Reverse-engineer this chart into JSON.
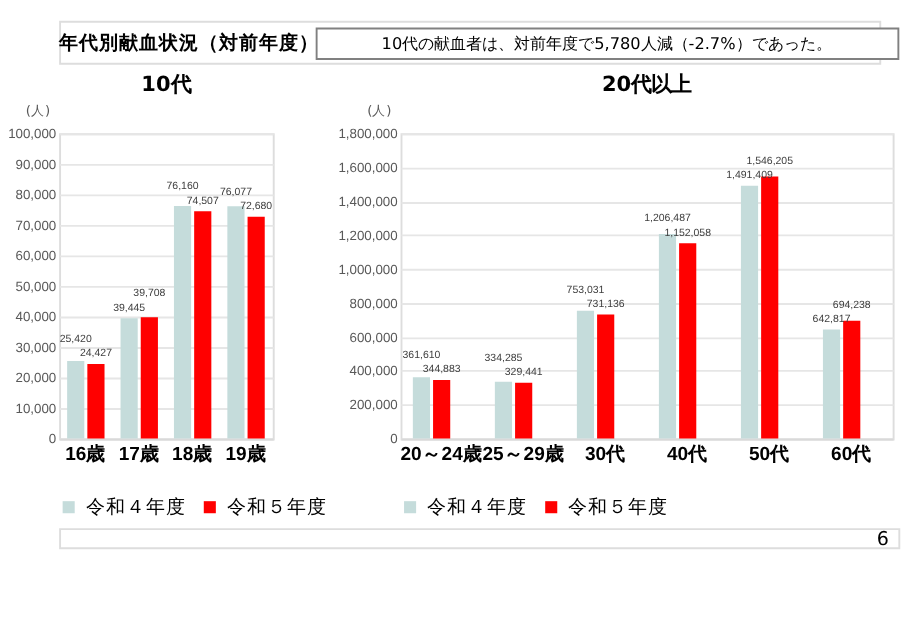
{
  "chart_data": [
    {
      "type": "bar",
      "title": "10代",
      "ylabel": "(人)",
      "categories": [
        "16歳",
        "17歳",
        "18歳",
        "19歳"
      ],
      "series": [
        {
          "name": "令和４年度",
          "color": "#c5dcdb",
          "values": [
            25420,
            39445,
            76160,
            76077
          ],
          "value_labels": [
            "25,420",
            "39,445",
            "76,160",
            "76,077"
          ]
        },
        {
          "name": "令和５年度",
          "color": "#ff0000",
          "values": [
            24427,
            39708,
            74507,
            72680
          ],
          "value_labels": [
            "24,427",
            "39,708",
            "74,507",
            "72,680"
          ]
        }
      ],
      "ylim": [
        0,
        100000
      ],
      "yticks": [
        0,
        {
          "value": 10000,
          "label": "10,000"
        },
        {
          "value": 20000,
          "label": "20,000"
        },
        {
          "value": 30000,
          "label": "30,000"
        },
        {
          "value": 40000,
          "label": "40,000"
        },
        {
          "value": 50000,
          "label": "50,000"
        },
        {
          "value": 60000,
          "label": "60,000"
        },
        {
          "value": 70000,
          "label": "70,000"
        },
        {
          "value": 80000,
          "label": "80,000"
        },
        {
          "value": 90000,
          "label": "90,000"
        },
        {
          "value": 100000,
          "label": "100,000"
        }
      ],
      "grid": "y",
      "legend": "bottom",
      "data_labels": true,
      "annotations": [
        "年代別献血状況（対前年度）",
        "10代の献血者は、対前年度で5,780人減（-2.7%）であった。"
      ]
    },
    {
      "type": "bar",
      "title": "20代以上",
      "ylabel": "(人)",
      "categories": [
        "20～24歳",
        "25～29歳",
        "30代",
        "40代",
        "50代",
        "60代"
      ],
      "series": [
        {
          "name": "令和４年度",
          "color": "#c5dcdb",
          "values": [
            361610,
            334285,
            753031,
            1206487,
            1491409,
            642817
          ],
          "value_labels": [
            "361,610",
            "334,285",
            "753,031",
            "1,206,487",
            "1,491,409",
            "642,817"
          ]
        },
        {
          "name": "令和５年度",
          "color": "#ff0000",
          "values": [
            344883,
            329441,
            731136,
            1152058,
            1546205,
            694238
          ],
          "value_labels": [
            "344,883",
            "329,441",
            "731,136",
            "1,152,058",
            "1,546,205",
            "694,238"
          ]
        }
      ],
      "ylim": [
        0,
        1800000
      ],
      "yticks": [
        0,
        {
          "value": 200000,
          "label": "200,000"
        },
        {
          "value": 400000,
          "label": "400,000"
        },
        {
          "value": 600000,
          "label": "600,000"
        },
        {
          "value": 800000,
          "label": "800,000"
        },
        {
          "value": 1000000,
          "label": "1,000,000"
        },
        {
          "value": 1200000,
          "label": "1,200,000"
        },
        {
          "value": 1400000,
          "label": "1,400,000"
        },
        {
          "value": 1600000,
          "label": "1,600,000"
        },
        {
          "value": 1800000,
          "label": "1,800,000"
        }
      ],
      "grid": "y",
      "legend": "bottom",
      "data_labels": true,
      "annotations": [
        "6"
      ]
    }
  ]
}
